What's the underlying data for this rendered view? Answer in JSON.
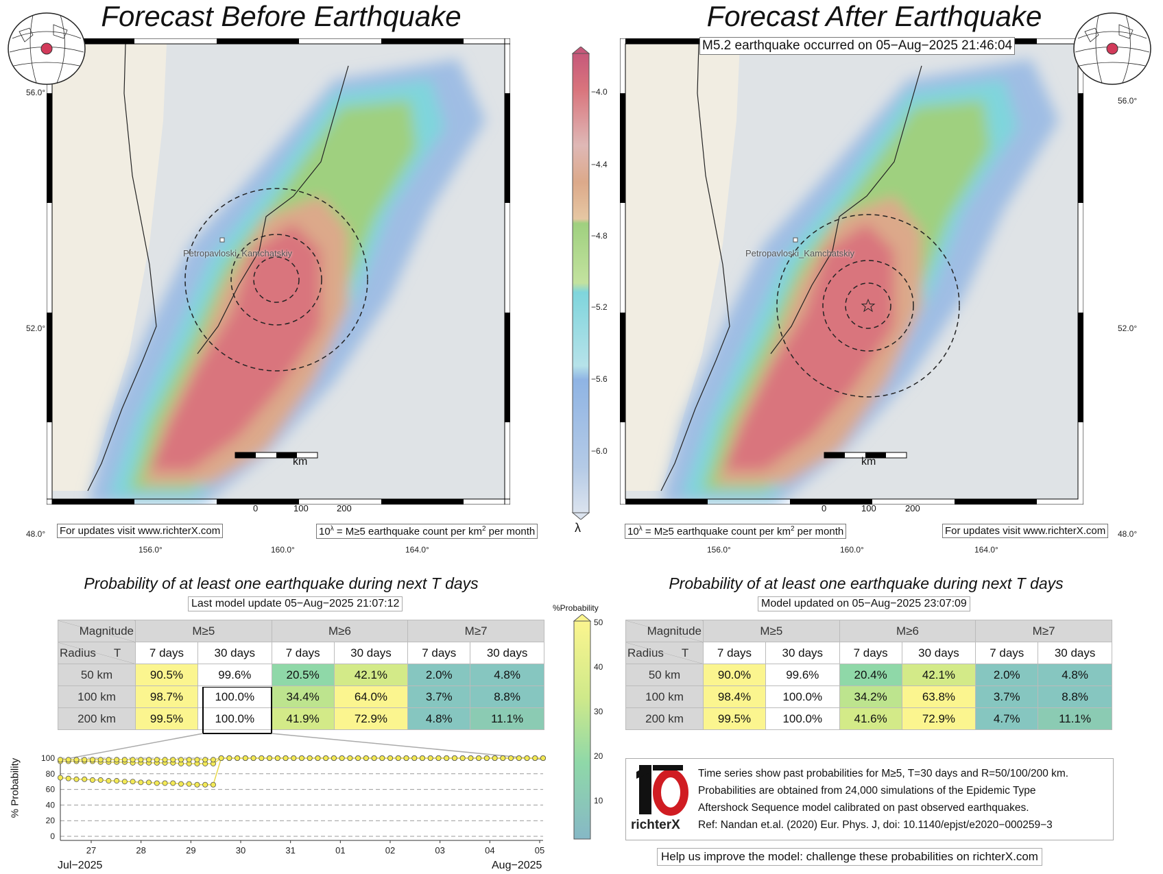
{
  "left_map": {
    "title": "Forecast Before Earthquake",
    "city_label": "Petropavloski_Kamchatskiy",
    "scale_unit": "km",
    "scale_ticks": [
      "0",
      "100",
      "200"
    ],
    "footer_left": "For updates visit www.richterX.com",
    "footer_right_pre": "10",
    "footer_right_sup": "λ",
    "footer_right_post": " = M≥5 earthquake count per km",
    "footer_right_sup2": "2",
    "footer_right_end": " per month",
    "lat_ticks": [
      "56.0°",
      "52.0°",
      "48.0°"
    ],
    "lon_ticks": [
      "156.0°",
      "160.0°",
      "164.0°"
    ]
  },
  "right_map": {
    "title": "Forecast After Earthquake",
    "event_banner": "M5.2 earthquake occurred on 05−Aug−2025 21:46:04",
    "city_label": "Petropavloski_Kamchatskiy",
    "scale_unit": "km",
    "scale_ticks": [
      "0",
      "100",
      "200"
    ],
    "footer_left_pre": "10",
    "footer_left_sup": "λ",
    "footer_left_post": " = M≥5 earthquake count per km",
    "footer_left_sup2": "2",
    "footer_left_end": " per month",
    "footer_right": "For updates visit www.richterX.com",
    "lat_ticks": [
      "56.0°",
      "52.0°",
      "48.0°"
    ],
    "lon_ticks": [
      "156.0°",
      "160.0°",
      "164.0°"
    ]
  },
  "colorbar": {
    "ticks": [
      "−4.0",
      "−4.4",
      "−4.8",
      "−5.2",
      "−5.6",
      "−6.0"
    ],
    "symbol": "λ"
  },
  "prob_colorbar": {
    "title": "%Probability",
    "ticks": [
      "50",
      "40",
      "30",
      "20",
      "10"
    ]
  },
  "left_table": {
    "title": "Probability of at least one earthquake during next T days",
    "update": "Last model update 05−Aug−2025 21:07:12",
    "corner_top": "Magnitude",
    "corner_bottom_left": "Radius",
    "corner_bottom_right": "T",
    "magnitudes": [
      "M≥5",
      "M≥6",
      "M≥7"
    ],
    "periods": [
      "7 days",
      "30 days",
      "7 days",
      "30 days",
      "7 days",
      "30 days"
    ],
    "rows": [
      {
        "radius": "50 km",
        "cells": [
          "90.5%",
          "99.6%",
          "20.5%",
          "42.1%",
          "2.0%",
          "4.8%"
        ]
      },
      {
        "radius": "100 km",
        "cells": [
          "98.7%",
          "100.0%",
          "34.4%",
          "64.0%",
          "3.7%",
          "8.8%"
        ]
      },
      {
        "radius": "200 km",
        "cells": [
          "99.5%",
          "100.0%",
          "41.9%",
          "72.9%",
          "4.8%",
          "11.1%"
        ]
      }
    ]
  },
  "right_table": {
    "title": "Probability of at least one earthquake during next T days",
    "update": "Model updated on 05−Aug−2025 23:07:09",
    "corner_top": "Magnitude",
    "corner_bottom_left": "Radius",
    "corner_bottom_right": "T",
    "magnitudes": [
      "M≥5",
      "M≥6",
      "M≥7"
    ],
    "periods": [
      "7 days",
      "30 days",
      "7 days",
      "30 days",
      "7 days",
      "30 days"
    ],
    "rows": [
      {
        "radius": "50 km",
        "cells": [
          "90.0%",
          "99.6%",
          "20.4%",
          "42.1%",
          "2.0%",
          "4.8%"
        ]
      },
      {
        "radius": "100 km",
        "cells": [
          "98.4%",
          "100.0%",
          "34.2%",
          "63.8%",
          "3.7%",
          "8.8%"
        ]
      },
      {
        "radius": "200 km",
        "cells": [
          "99.5%",
          "100.0%",
          "41.6%",
          "72.9%",
          "4.7%",
          "11.1%"
        ]
      }
    ]
  },
  "chart_data": {
    "type": "line",
    "ylabel": "% Probability",
    "ylim": [
      0,
      100
    ],
    "y_ticks": [
      "100",
      "80",
      "60",
      "40",
      "20",
      "0"
    ],
    "x_ticks": [
      "27",
      "28",
      "29",
      "30",
      "31",
      "01",
      "02",
      "03",
      "04",
      "05"
    ],
    "x_month_left": "Jul−2025",
    "x_month_right": "Aug−2025",
    "grid": true,
    "series": [
      {
        "values": [
          96,
          96,
          96,
          96,
          96,
          95,
          95,
          95,
          95,
          94,
          94,
          94,
          94,
          94,
          94,
          93,
          93,
          93,
          93,
          93,
          100,
          100,
          100,
          100,
          100,
          100,
          100,
          100,
          100,
          100,
          100,
          100,
          100,
          100,
          100,
          100,
          100,
          100,
          100,
          100,
          100,
          100,
          100,
          100,
          100,
          100,
          100,
          100,
          100,
          100,
          100,
          100,
          100,
          100,
          100,
          100,
          100,
          100,
          100,
          100,
          100
        ]
      },
      {
        "values": [
          98,
          98,
          98,
          98,
          98,
          98,
          98,
          98,
          98,
          98,
          98,
          98,
          98,
          98,
          98,
          98,
          98,
          98,
          98,
          98,
          100,
          100,
          100,
          100,
          100,
          100,
          100,
          100,
          100,
          100,
          100,
          100,
          100,
          100,
          100,
          100,
          100,
          100,
          100,
          100,
          100,
          100,
          100,
          100,
          100,
          100,
          100,
          100,
          100,
          100,
          100,
          100,
          100,
          100,
          100,
          100,
          100,
          100,
          100,
          100,
          100
        ]
      },
      {
        "values": [
          75,
          74,
          73,
          73,
          72,
          72,
          71,
          71,
          70,
          70,
          69,
          69,
          68,
          68,
          68,
          67,
          67,
          66,
          66,
          66,
          100,
          100,
          100,
          100,
          100,
          100,
          100,
          100,
          100,
          100,
          100,
          100,
          100,
          100,
          100,
          100,
          100,
          100,
          100,
          100,
          100,
          100,
          100,
          100,
          100,
          100,
          100,
          100,
          100,
          100,
          100,
          100,
          100,
          100,
          100,
          100,
          100,
          100,
          100,
          100,
          100
        ]
      }
    ]
  },
  "info": {
    "logo_text": "richterX",
    "lines": [
      "Time series show past probabilities for M≥5, T=30 days and R=50/100/200 km.",
      "Probabilities are obtained from 24,000 simulations of the Epidemic Type",
      "Aftershock Sequence model calibrated on past observed earthquakes.",
      "Ref: Nandan et.al. (2020) Eur. Phys. J, doi: 10.1140/epjst/e2020−000259−3"
    ],
    "help": "Help us improve the model: challenge these probabilities on richterX.com"
  },
  "colors": {
    "high": "#d9757d",
    "mid_high": "#dca98a",
    "mid": "#9fd07f",
    "low": "#7fd5dc",
    "lowest": "#8fb4e4",
    "yellow": "#fbf58f",
    "green_yellow": "#cfe98a",
    "teal": "#7ecfa8",
    "teal_dark": "#86c6c0"
  }
}
